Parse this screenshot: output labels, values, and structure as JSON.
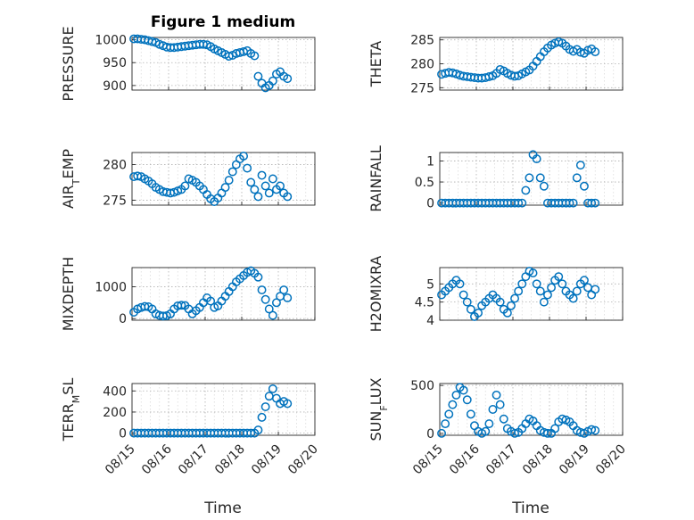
{
  "figure_title": "Figure 1 medium",
  "marker_color": "#0072BD",
  "x_tick_labels": [
    "08/15",
    "08/16",
    "08/17",
    "08/18",
    "08/19",
    "08/20"
  ],
  "x_axis_label": "Time",
  "chart_data": [
    {
      "id": "pressure",
      "type": "scatter",
      "ylabel": "PRESSURE",
      "ylim": [
        890,
        1005
      ],
      "yticks": [
        900,
        950,
        1000
      ],
      "xlim": [
        0,
        5
      ],
      "grid": true,
      "x": [
        0.05,
        0.15,
        0.25,
        0.35,
        0.45,
        0.55,
        0.65,
        0.75,
        0.85,
        0.95,
        1.05,
        1.15,
        1.25,
        1.35,
        1.45,
        1.55,
        1.65,
        1.75,
        1.85,
        1.95,
        2.05,
        2.15,
        2.25,
        2.35,
        2.45,
        2.55,
        2.65,
        2.75,
        2.85,
        2.95,
        3.05,
        3.15,
        3.25,
        3.35,
        3.45,
        3.55,
        3.65,
        3.75,
        3.85,
        3.95,
        4.05,
        4.15,
        4.25
      ],
      "y": [
        1002,
        1002,
        1001,
        1000,
        998,
        996,
        994,
        990,
        987,
        984,
        983,
        983,
        984,
        985,
        986,
        987,
        988,
        989,
        990,
        990,
        989,
        985,
        980,
        976,
        972,
        968,
        964,
        966,
        970,
        972,
        974,
        976,
        970,
        965,
        920,
        905,
        895,
        900,
        910,
        925,
        930,
        920,
        915
      ]
    },
    {
      "id": "theta",
      "type": "scatter",
      "ylabel": "THETA",
      "ylim": [
        274.5,
        285.5
      ],
      "yticks": [
        275,
        280,
        285
      ],
      "xlim": [
        0,
        5
      ],
      "grid": true,
      "x": [
        0.05,
        0.15,
        0.25,
        0.35,
        0.45,
        0.55,
        0.65,
        0.75,
        0.85,
        0.95,
        1.05,
        1.15,
        1.25,
        1.35,
        1.45,
        1.55,
        1.65,
        1.75,
        1.85,
        1.95,
        2.05,
        2.15,
        2.25,
        2.35,
        2.45,
        2.55,
        2.65,
        2.75,
        2.85,
        2.95,
        3.05,
        3.15,
        3.25,
        3.35,
        3.45,
        3.55,
        3.65,
        3.75,
        3.85,
        3.95,
        4.05,
        4.15,
        4.25
      ],
      "y": [
        277.8,
        278.0,
        278.2,
        278.1,
        277.9,
        277.6,
        277.4,
        277.3,
        277.2,
        277.1,
        277.0,
        277.0,
        277.1,
        277.3,
        277.5,
        278.0,
        278.8,
        278.5,
        278.0,
        277.6,
        277.4,
        277.5,
        277.9,
        278.3,
        278.7,
        279.5,
        280.5,
        281.5,
        282.5,
        283.3,
        283.9,
        284.3,
        284.6,
        284.3,
        283.7,
        283.0,
        282.6,
        283.0,
        282.4,
        282.2,
        282.8,
        283.1,
        282.5
      ]
    },
    {
      "id": "air_temp",
      "type": "scatter",
      "ylabel": "AIR_TEMP",
      "ylim": [
        274.3,
        281.7
      ],
      "yticks": [
        275,
        280
      ],
      "xlim": [
        0,
        5
      ],
      "grid": true,
      "x": [
        0.05,
        0.15,
        0.25,
        0.35,
        0.45,
        0.55,
        0.65,
        0.75,
        0.85,
        0.95,
        1.05,
        1.15,
        1.25,
        1.35,
        1.45,
        1.55,
        1.65,
        1.75,
        1.85,
        1.95,
        2.05,
        2.15,
        2.25,
        2.35,
        2.45,
        2.55,
        2.65,
        2.75,
        2.85,
        2.95,
        3.05,
        3.15,
        3.25,
        3.35,
        3.45,
        3.55,
        3.65,
        3.75,
        3.85,
        3.95,
        4.05,
        4.15,
        4.25
      ],
      "y": [
        278.3,
        278.4,
        278.3,
        278.0,
        277.7,
        277.3,
        276.8,
        276.5,
        276.2,
        276.1,
        276.0,
        276.1,
        276.3,
        276.5,
        277.0,
        278.0,
        277.8,
        277.5,
        277.0,
        276.5,
        275.8,
        275.2,
        274.8,
        275.3,
        276.0,
        276.8,
        277.8,
        279.0,
        280.0,
        280.8,
        281.2,
        279.5,
        277.5,
        276.5,
        275.5,
        278.5,
        277.0,
        276.0,
        278.0,
        276.5,
        277.0,
        276.0,
        275.5
      ]
    },
    {
      "id": "rainfall",
      "type": "scatter",
      "ylabel": "RAINFALL",
      "ylim": [
        -0.05,
        1.2
      ],
      "yticks": [
        0,
        0.5,
        1
      ],
      "ytick_labels": [
        "0",
        "0.5",
        "1"
      ],
      "xlim": [
        0,
        5
      ],
      "grid": true,
      "x": [
        0.05,
        0.15,
        0.25,
        0.35,
        0.45,
        0.55,
        0.65,
        0.75,
        0.85,
        0.95,
        1.05,
        1.15,
        1.25,
        1.35,
        1.45,
        1.55,
        1.65,
        1.75,
        1.85,
        1.95,
        2.05,
        2.15,
        2.25,
        2.35,
        2.45,
        2.55,
        2.65,
        2.75,
        2.85,
        2.95,
        3.05,
        3.15,
        3.25,
        3.35,
        3.45,
        3.55,
        3.65,
        3.75,
        3.85,
        3.95,
        4.05,
        4.15,
        4.25
      ],
      "y": [
        0,
        0,
        0,
        0,
        0,
        0,
        0,
        0,
        0,
        0,
        0,
        0,
        0,
        0,
        0,
        0,
        0,
        0,
        0,
        0,
        0,
        0,
        0,
        0.3,
        0.6,
        1.15,
        1.05,
        0.6,
        0.4,
        0,
        0,
        0,
        0,
        0,
        0,
        0,
        0,
        0.6,
        0.9,
        0.4,
        0,
        0,
        0
      ]
    },
    {
      "id": "mixdepth",
      "type": "scatter",
      "ylabel": "MIXDEPTH",
      "ylim": [
        -50,
        1600
      ],
      "yticks": [
        0,
        1000
      ],
      "xlim": [
        0,
        5
      ],
      "grid": true,
      "x": [
        0.05,
        0.15,
        0.25,
        0.35,
        0.45,
        0.55,
        0.65,
        0.75,
        0.85,
        0.95,
        1.05,
        1.15,
        1.25,
        1.35,
        1.45,
        1.55,
        1.65,
        1.75,
        1.85,
        1.95,
        2.05,
        2.15,
        2.25,
        2.35,
        2.45,
        2.55,
        2.65,
        2.75,
        2.85,
        2.95,
        3.05,
        3.15,
        3.25,
        3.35,
        3.45,
        3.55,
        3.65,
        3.75,
        3.85,
        3.95,
        4.05,
        4.15,
        4.25
      ],
      "y": [
        200,
        300,
        350,
        380,
        370,
        300,
        150,
        100,
        80,
        90,
        150,
        300,
        400,
        420,
        410,
        300,
        150,
        250,
        350,
        500,
        650,
        550,
        350,
        400,
        550,
        700,
        850,
        1000,
        1150,
        1250,
        1350,
        1450,
        1500,
        1420,
        1300,
        900,
        600,
        300,
        100,
        500,
        700,
        900,
        650
      ]
    },
    {
      "id": "h2omixra",
      "type": "scatter",
      "ylabel": "H2OMIXRA",
      "ylim": [
        4.0,
        5.45
      ],
      "yticks": [
        4,
        4.5,
        5
      ],
      "ytick_labels": [
        "4",
        "4.5",
        "5"
      ],
      "xlim": [
        0,
        5
      ],
      "grid": true,
      "x": [
        0.05,
        0.15,
        0.25,
        0.35,
        0.45,
        0.55,
        0.65,
        0.75,
        0.85,
        0.95,
        1.05,
        1.15,
        1.25,
        1.35,
        1.45,
        1.55,
        1.65,
        1.75,
        1.85,
        1.95,
        2.05,
        2.15,
        2.25,
        2.35,
        2.45,
        2.55,
        2.65,
        2.75,
        2.85,
        2.95,
        3.05,
        3.15,
        3.25,
        3.35,
        3.45,
        3.55,
        3.65,
        3.75,
        3.85,
        3.95,
        4.05,
        4.15,
        4.25
      ],
      "y": [
        4.7,
        4.8,
        4.9,
        5.0,
        5.1,
        5.0,
        4.7,
        4.5,
        4.3,
        4.1,
        4.2,
        4.4,
        4.5,
        4.6,
        4.7,
        4.6,
        4.5,
        4.3,
        4.2,
        4.4,
        4.6,
        4.8,
        5.0,
        5.2,
        5.35,
        5.3,
        5.0,
        4.8,
        4.5,
        4.7,
        4.9,
        5.1,
        5.2,
        5.0,
        4.8,
        4.7,
        4.6,
        4.8,
        5.0,
        5.1,
        4.9,
        4.7,
        4.85
      ]
    },
    {
      "id": "terr_msl",
      "type": "scatter",
      "ylabel": "TERR_MSL",
      "ylim": [
        -20,
        470
      ],
      "yticks": [
        0,
        200,
        400
      ],
      "xlim": [
        0,
        5
      ],
      "grid": true,
      "x": [
        0.05,
        0.15,
        0.25,
        0.35,
        0.45,
        0.55,
        0.65,
        0.75,
        0.85,
        0.95,
        1.05,
        1.15,
        1.25,
        1.35,
        1.45,
        1.55,
        1.65,
        1.75,
        1.85,
        1.95,
        2.05,
        2.15,
        2.25,
        2.35,
        2.45,
        2.55,
        2.65,
        2.75,
        2.85,
        2.95,
        3.05,
        3.15,
        3.25,
        3.35,
        3.45,
        3.55,
        3.65,
        3.75,
        3.85,
        3.95,
        4.05,
        4.15,
        4.25
      ],
      "y": [
        0,
        0,
        0,
        0,
        0,
        0,
        0,
        0,
        0,
        0,
        0,
        0,
        0,
        0,
        0,
        0,
        0,
        0,
        0,
        0,
        0,
        0,
        0,
        0,
        0,
        0,
        0,
        0,
        0,
        0,
        0,
        0,
        0,
        0,
        30,
        150,
        250,
        350,
        420,
        330,
        280,
        300,
        280
      ]
    },
    {
      "id": "sun_flux",
      "type": "scatter",
      "ylabel": "SUN_FLUX",
      "ylim": [
        -20,
        520
      ],
      "yticks": [
        0,
        500
      ],
      "xlim": [
        0,
        5
      ],
      "grid": true,
      "x": [
        0.05,
        0.15,
        0.25,
        0.35,
        0.45,
        0.55,
        0.65,
        0.75,
        0.85,
        0.95,
        1.05,
        1.15,
        1.25,
        1.35,
        1.45,
        1.55,
        1.65,
        1.75,
        1.85,
        1.95,
        2.05,
        2.15,
        2.25,
        2.35,
        2.45,
        2.55,
        2.65,
        2.75,
        2.85,
        2.95,
        3.05,
        3.15,
        3.25,
        3.35,
        3.45,
        3.55,
        3.65,
        3.75,
        3.85,
        3.95,
        4.05,
        4.15,
        4.25
      ],
      "y": [
        0,
        100,
        200,
        300,
        400,
        480,
        450,
        350,
        200,
        80,
        20,
        0,
        20,
        100,
        250,
        400,
        300,
        150,
        50,
        20,
        0,
        10,
        50,
        100,
        150,
        130,
        80,
        30,
        10,
        0,
        0,
        50,
        120,
        150,
        140,
        120,
        80,
        30,
        10,
        0,
        20,
        40,
        30
      ]
    }
  ]
}
